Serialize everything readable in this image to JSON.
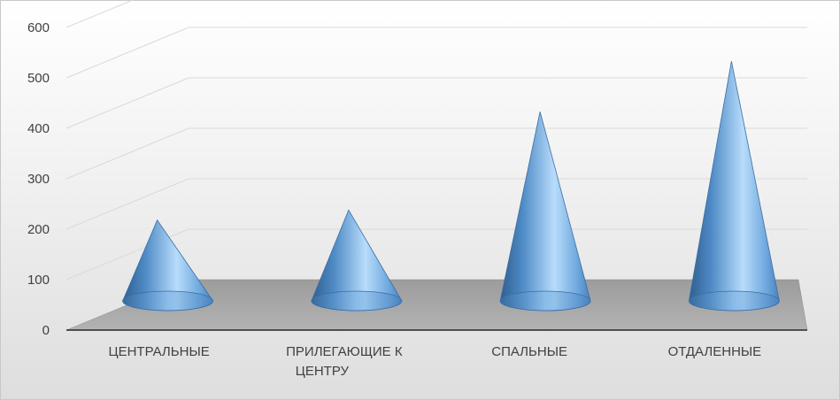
{
  "chart_data": {
    "type": "bar",
    "shape": "cone",
    "categories": [
      "ЦЕНТРАЛЬНЫЕ",
      "ПРИЛЕГАЮЩИЕ К ЦЕНТРУ",
      "СПАЛЬНЫЕ",
      "ОТДАЛЕННЫЕ"
    ],
    "category_lines": [
      [
        "ЦЕНТРАЛЬНЫЕ"
      ],
      [
        "ПРИЛЕГАЮЩИЕ К",
        "ЦЕНТРУ"
      ],
      [
        "СПАЛЬНЫЕ"
      ],
      [
        "ОТДАЛЕННЫЕ"
      ]
    ],
    "values": [
      125,
      145,
      340,
      440
    ],
    "ylim": [
      0,
      600
    ],
    "yticks": [
      0,
      100,
      200,
      300,
      400,
      500,
      600
    ],
    "grid": true,
    "legend": "none",
    "colors": {
      "cone": "#5b9bd5",
      "floor": "#a6a6a6",
      "grid": "#d9d9d9"
    }
  }
}
